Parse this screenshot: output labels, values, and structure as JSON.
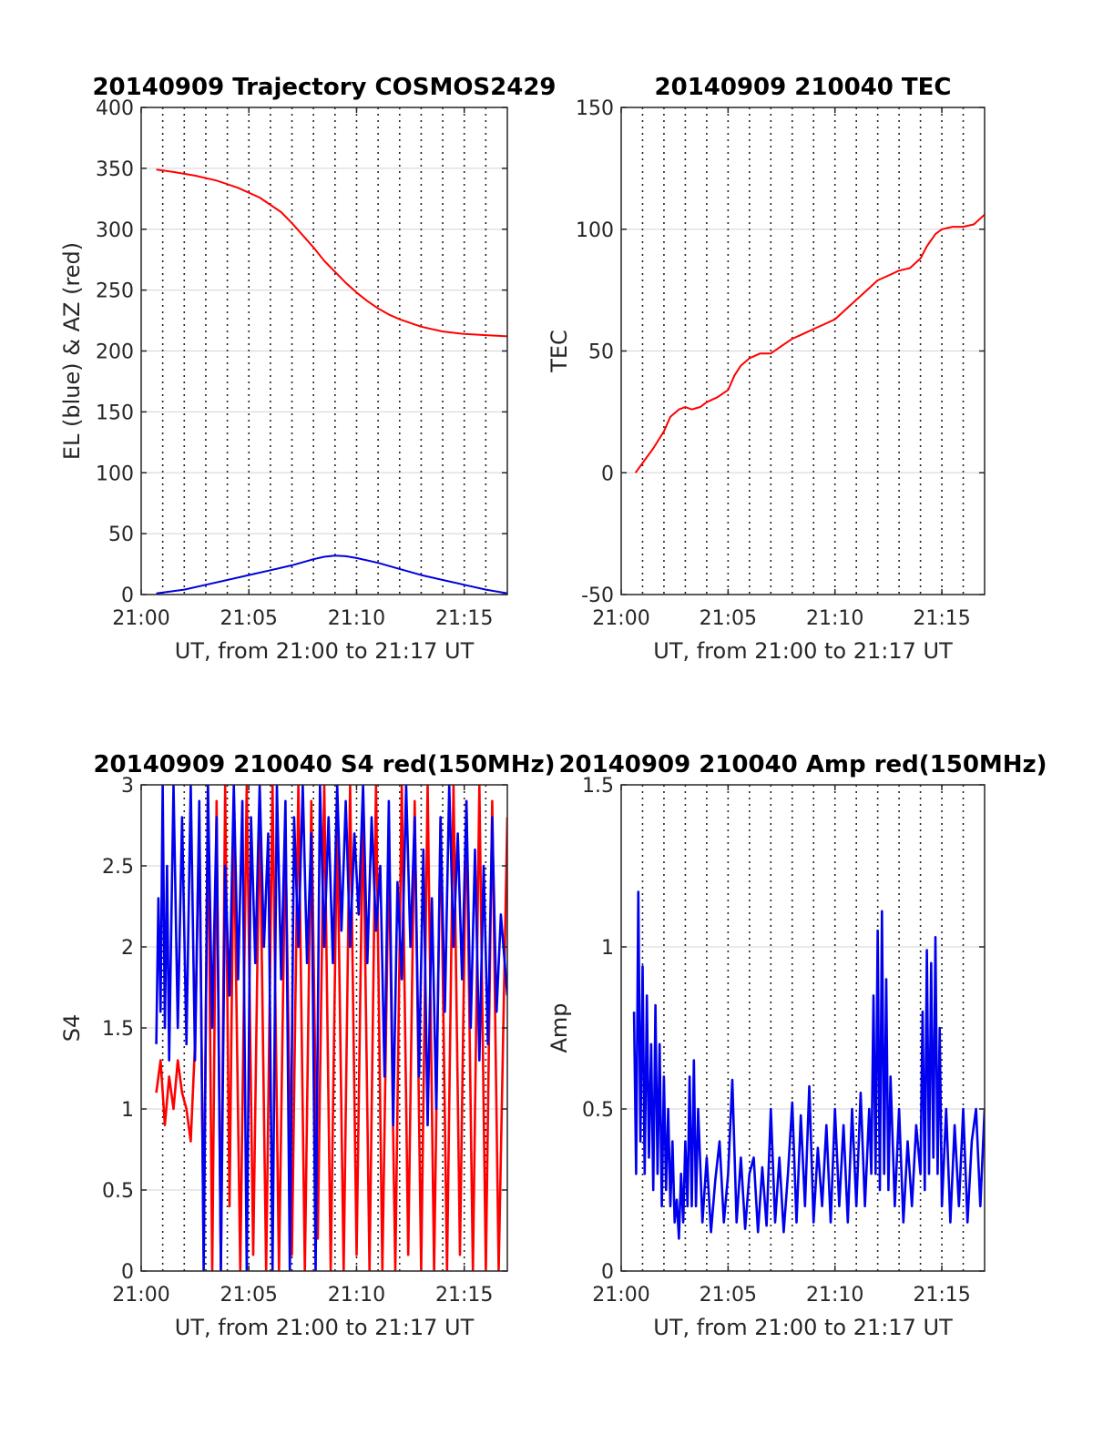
{
  "chart_data": [
    {
      "id": "trajectory",
      "type": "line",
      "title": "20140909 Trajectory COSMOS2429",
      "xlabel": "UT, from 21:00 to 21:17 UT",
      "ylabel": "EL (blue) & AZ (red)",
      "xlim": [
        0,
        17
      ],
      "ylim": [
        0,
        400
      ],
      "yticks": [
        0,
        50,
        100,
        150,
        200,
        250,
        300,
        350,
        400
      ],
      "ytick_labels": [
        "0",
        "50",
        "100",
        "150",
        "200",
        "250",
        "300",
        "350",
        "400"
      ],
      "xticks": [
        0,
        5,
        10,
        15
      ],
      "xtick_labels": [
        "21:00",
        "21:05",
        "21:10",
        "21:15"
      ],
      "grid": "on",
      "series": [
        {
          "color": "#ff0000",
          "x": [
            0.7,
            1.5,
            2.5,
            3.5,
            4.5,
            5.5,
            6.5,
            7.0,
            7.5,
            8.0,
            8.5,
            9.0,
            9.5,
            10.0,
            10.5,
            11.0,
            11.5,
            12.0,
            13.0,
            14.0,
            15.0,
            16.0,
            17.0
          ],
          "y": [
            349,
            347,
            344,
            340,
            334,
            326,
            314,
            305,
            295,
            285,
            274,
            265,
            256,
            248,
            241,
            235,
            230,
            226,
            220,
            216,
            214,
            213,
            212
          ]
        },
        {
          "color": "#0000dd",
          "x": [
            0.7,
            2.0,
            3.0,
            4.0,
            5.0,
            6.0,
            7.0,
            8.0,
            8.5,
            9.0,
            9.5,
            10.0,
            11.0,
            12.0,
            13.0,
            14.0,
            15.0,
            16.0,
            17.0
          ],
          "y": [
            1,
            4,
            8,
            12,
            16,
            20,
            24,
            29,
            31,
            32,
            31.5,
            30,
            26,
            21,
            16,
            12,
            8,
            4,
            1
          ]
        }
      ]
    },
    {
      "id": "tec",
      "type": "line",
      "title": "20140909 210040 TEC",
      "xlabel": "UT, from 21:00 to 21:17 UT",
      "ylabel": "TEC",
      "xlim": [
        0,
        17
      ],
      "ylim": [
        -50,
        150
      ],
      "yticks": [
        -50,
        0,
        50,
        100,
        150
      ],
      "ytick_labels": [
        "-50",
        "0",
        "50",
        "100",
        "150"
      ],
      "xticks": [
        0,
        5,
        10,
        15
      ],
      "xtick_labels": [
        "21:00",
        "21:05",
        "21:10",
        "21:15"
      ],
      "grid": "on",
      "series": [
        {
          "color": "#ff0000",
          "x": [
            0.67,
            1.0,
            1.5,
            2.0,
            2.3,
            2.7,
            3.0,
            3.3,
            3.7,
            4.0,
            4.5,
            5.0,
            5.3,
            5.6,
            6.0,
            6.5,
            7.0,
            7.5,
            8.0,
            8.5,
            9.0,
            9.5,
            10.0,
            10.5,
            11.0,
            11.5,
            12.0,
            12.5,
            13.0,
            13.5,
            14.0,
            14.3,
            14.7,
            15.0,
            15.5,
            16.0,
            16.5,
            17.0
          ],
          "y": [
            0,
            4,
            10,
            17,
            23,
            26,
            27,
            26,
            27,
            29,
            31,
            34,
            40,
            44,
            47,
            49,
            49,
            52,
            55,
            57,
            59,
            61,
            63,
            67,
            71,
            75,
            79,
            81,
            83,
            84,
            88,
            93,
            98,
            100,
            101,
            101,
            102,
            106
          ]
        }
      ]
    },
    {
      "id": "s4",
      "type": "line",
      "title": "20140909 210040 S4 red(150MHz)",
      "xlabel": "UT, from 21:00 to 21:17 UT",
      "ylabel": "S4",
      "xlim": [
        0,
        17
      ],
      "ylim": [
        0,
        3
      ],
      "yticks": [
        0,
        0.5,
        1,
        1.5,
        2,
        2.5,
        3
      ],
      "ytick_labels": [
        "0",
        "0.5",
        "1",
        "1.5",
        "2",
        "2.5",
        "3"
      ],
      "xticks": [
        0,
        5,
        10,
        15
      ],
      "xtick_labels": [
        "21:00",
        "21:05",
        "21:10",
        "21:15"
      ],
      "grid": "on",
      "series": [
        {
          "color": "#ff0000",
          "x": [
            0.7,
            0.9,
            1.1,
            1.3,
            1.5,
            1.7,
            1.9,
            2.1,
            2.3,
            2.5,
            2.7,
            2.9,
            3.1,
            3.3,
            3.5,
            3.7,
            3.9,
            4.1,
            4.3,
            4.6,
            4.9,
            5.2,
            5.5,
            5.8,
            6.1,
            6.4,
            6.7,
            7.0,
            7.3,
            7.6,
            7.9,
            8.2,
            8.5,
            8.8,
            9.1,
            9.4,
            9.7,
            10.0,
            10.3,
            10.6,
            10.9,
            11.2,
            11.5,
            11.8,
            12.1,
            12.4,
            12.7,
            13.0,
            13.3,
            13.6,
            13.9,
            14.2,
            14.5,
            14.8,
            15.1,
            15.4,
            15.7,
            16.0,
            16.3,
            16.6,
            17.0
          ],
          "y": [
            1.1,
            1.3,
            0.9,
            1.2,
            1.0,
            1.3,
            1.1,
            1.0,
            0.8,
            1.4,
            2.8,
            0.1,
            3.0,
            0.0,
            2.9,
            0.0,
            3.0,
            0.4,
            2.8,
            0.0,
            3.0,
            0.1,
            2.9,
            0.0,
            3.0,
            0.0,
            2.7,
            0.1,
            3.0,
            0.0,
            2.9,
            0.2,
            3.0,
            0.0,
            2.8,
            0.0,
            3.0,
            0.1,
            2.9,
            0.0,
            3.0,
            0.0,
            2.6,
            0.0,
            3.0,
            0.1,
            2.9,
            0.0,
            3.0,
            0.0,
            2.8,
            0.0,
            3.0,
            0.1,
            2.9,
            0.0,
            3.0,
            0.0,
            2.9,
            0.0,
            2.8
          ]
        },
        {
          "color": "#0000ee",
          "x": [
            0.7,
            0.8,
            0.9,
            1.0,
            1.1,
            1.2,
            1.3,
            1.5,
            1.7,
            1.9,
            2.1,
            2.3,
            2.5,
            2.7,
            2.9,
            3.1,
            3.3,
            3.5,
            3.7,
            3.9,
            4.1,
            4.3,
            4.5,
            4.7,
            4.9,
            5.1,
            5.3,
            5.5,
            5.7,
            5.9,
            6.1,
            6.3,
            6.5,
            6.7,
            6.9,
            7.1,
            7.3,
            7.5,
            7.7,
            7.9,
            8.1,
            8.3,
            8.5,
            8.7,
            8.9,
            9.1,
            9.3,
            9.5,
            9.7,
            9.9,
            10.1,
            10.3,
            10.5,
            10.7,
            10.9,
            11.1,
            11.3,
            11.5,
            11.7,
            11.9,
            12.1,
            12.3,
            12.5,
            12.7,
            12.9,
            13.1,
            13.3,
            13.5,
            13.7,
            13.9,
            14.1,
            14.3,
            14.5,
            14.7,
            14.9,
            15.1,
            15.3,
            15.5,
            15.7,
            15.9,
            16.1,
            16.3,
            16.5,
            16.7,
            17.0
          ],
          "y": [
            1.4,
            2.3,
            1.6,
            3.0,
            1.5,
            2.5,
            1.3,
            3.0,
            1.5,
            2.8,
            1.4,
            3.0,
            1.3,
            2.9,
            0.0,
            3.0,
            1.5,
            2.8,
            0.0,
            2.5,
            1.7,
            3.0,
            1.8,
            2.9,
            0.0,
            2.8,
            1.9,
            3.0,
            2.0,
            2.7,
            0.0,
            3.0,
            1.8,
            2.9,
            0.0,
            2.8,
            2.0,
            3.0,
            1.9,
            2.7,
            0.0,
            3.0,
            2.0,
            2.8,
            1.9,
            3.0,
            2.1,
            2.9,
            2.0,
            2.7,
            2.2,
            3.0,
            1.9,
            2.8,
            2.1,
            2.5,
            1.2,
            2.9,
            0.9,
            2.4,
            1.8,
            3.0,
            2.0,
            2.8,
            1.2,
            2.6,
            0.9,
            2.3,
            1.0,
            2.8,
            1.6,
            3.0,
            2.0,
            2.7,
            1.8,
            2.9,
            1.5,
            2.6,
            1.3,
            2.5,
            1.4,
            2.8,
            1.6,
            2.2,
            1.7
          ]
        }
      ]
    },
    {
      "id": "amp",
      "type": "line",
      "title": "20140909 210040 Amp red(150MHz)",
      "xlabel": "UT, from 21:00 to 21:17 UT",
      "ylabel": "Amp",
      "xlim": [
        0,
        17
      ],
      "ylim": [
        0,
        1.5
      ],
      "yticks": [
        0,
        0.5,
        1,
        1.5
      ],
      "ytick_labels": [
        "0",
        "0.5",
        "1",
        "1.5"
      ],
      "xticks": [
        0,
        5,
        10,
        15
      ],
      "xtick_labels": [
        "21:00",
        "21:05",
        "21:10",
        "21:15"
      ],
      "grid": "on",
      "series": [
        {
          "color": "#0000ee",
          "x": [
            0.6,
            0.7,
            0.8,
            0.9,
            1.0,
            1.1,
            1.2,
            1.3,
            1.4,
            1.5,
            1.6,
            1.7,
            1.8,
            1.9,
            2.0,
            2.1,
            2.2,
            2.3,
            2.4,
            2.5,
            2.6,
            2.7,
            2.8,
            2.9,
            3.0,
            3.1,
            3.2,
            3.3,
            3.4,
            3.5,
            3.6,
            3.8,
            4.0,
            4.2,
            4.4,
            4.6,
            4.8,
            5.0,
            5.2,
            5.4,
            5.6,
            5.8,
            6.0,
            6.2,
            6.4,
            6.6,
            6.8,
            7.0,
            7.2,
            7.4,
            7.6,
            7.8,
            8.0,
            8.2,
            8.4,
            8.6,
            8.8,
            9.0,
            9.2,
            9.4,
            9.6,
            9.8,
            10.0,
            10.2,
            10.4,
            10.6,
            10.8,
            11.0,
            11.2,
            11.4,
            11.6,
            11.7,
            11.8,
            11.9,
            12.0,
            12.1,
            12.2,
            12.3,
            12.4,
            12.5,
            12.6,
            12.8,
            13.0,
            13.2,
            13.4,
            13.6,
            13.8,
            14.0,
            14.1,
            14.2,
            14.3,
            14.4,
            14.5,
            14.6,
            14.7,
            14.8,
            14.9,
            15.0,
            15.2,
            15.4,
            15.6,
            15.8,
            16.0,
            16.2,
            16.4,
            16.6,
            16.8,
            17.0
          ],
          "y": [
            0.8,
            0.3,
            1.17,
            0.4,
            0.94,
            0.3,
            0.85,
            0.35,
            0.7,
            0.25,
            0.82,
            0.3,
            0.7,
            0.2,
            0.6,
            0.25,
            0.5,
            0.2,
            0.4,
            0.15,
            0.22,
            0.1,
            0.3,
            0.15,
            0.4,
            0.2,
            0.6,
            0.2,
            0.65,
            0.2,
            0.5,
            0.15,
            0.35,
            0.12,
            0.28,
            0.4,
            0.15,
            0.3,
            0.59,
            0.15,
            0.35,
            0.13,
            0.3,
            0.35,
            0.12,
            0.32,
            0.14,
            0.5,
            0.15,
            0.35,
            0.12,
            0.3,
            0.52,
            0.15,
            0.48,
            0.2,
            0.57,
            0.15,
            0.38,
            0.2,
            0.45,
            0.15,
            0.5,
            0.2,
            0.45,
            0.15,
            0.5,
            0.2,
            0.55,
            0.2,
            0.5,
            0.3,
            0.85,
            0.3,
            1.05,
            0.25,
            1.11,
            0.3,
            0.9,
            0.25,
            0.6,
            0.2,
            0.5,
            0.15,
            0.4,
            0.2,
            0.45,
            0.3,
            0.8,
            0.25,
            0.99,
            0.3,
            0.95,
            0.35,
            1.03,
            0.3,
            0.75,
            0.2,
            0.5,
            0.15,
            0.45,
            0.2,
            0.5,
            0.15,
            0.4,
            0.5,
            0.2,
            0.5
          ]
        }
      ]
    }
  ]
}
